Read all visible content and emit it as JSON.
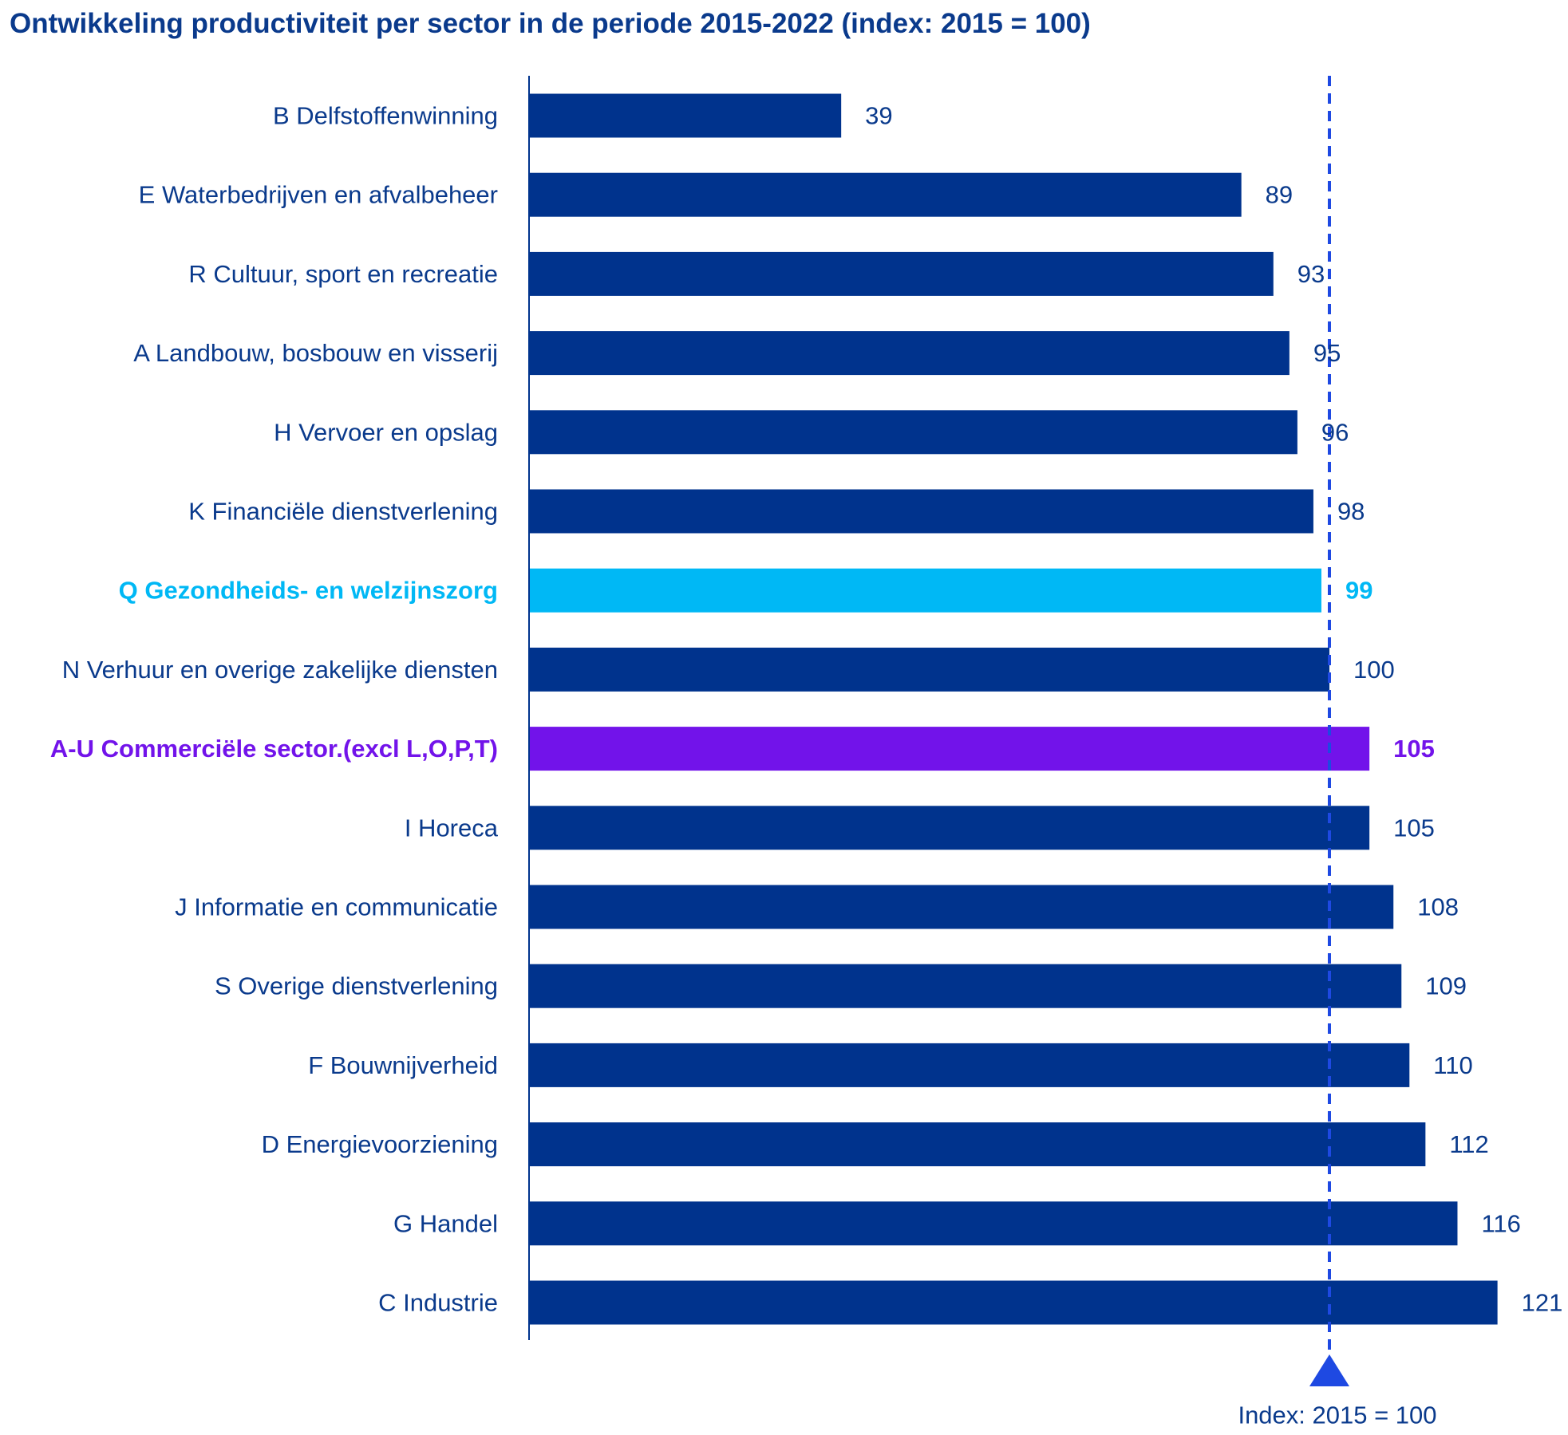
{
  "chart_data": {
    "type": "bar",
    "orientation": "horizontal",
    "title": "Ontwikkeling productiviteit per sector in de periode 2015-2022 (index: 2015 = 100)",
    "categories": [
      "B Delfstoffenwinning",
      "E Waterbedrijven en afvalbeheer",
      "R Cultuur, sport en recreatie",
      "A Landbouw, bosbouw en visserij",
      "H Vervoer en opslag",
      "K Financiële dienstverlening",
      "Q Gezondheids- en welzijnszorg",
      "N Verhuur en overige zakelijke diensten",
      "A-U Commerciële sector.(excl L,O,P,T)",
      "I Horeca",
      "J Informatie en communicatie",
      "S Overige dienstverlening",
      "F Bouwnijverheid",
      "D Energievoorziening",
      "G Handel",
      "C Industrie"
    ],
    "values": [
      39,
      89,
      93,
      95,
      96,
      98,
      99,
      100,
      105,
      105,
      108,
      109,
      110,
      112,
      116,
      121
    ],
    "highlight": {
      "Q Gezondheids- en welzijnszorg": "highlight",
      "A-U Commerciële sector.(excl L,O,P,T)": "total"
    },
    "xlim": [
      0,
      121
    ],
    "reference_line": {
      "value": 100,
      "label": "Index: 2015 = 100",
      "style": "dashed"
    },
    "colors": {
      "bar": "#00338d",
      "highlight": "#00b8f5",
      "total": "#7213ea",
      "reference": "#1e49e2",
      "text": "#0a3a8c"
    },
    "grid": false,
    "legend": "none"
  }
}
